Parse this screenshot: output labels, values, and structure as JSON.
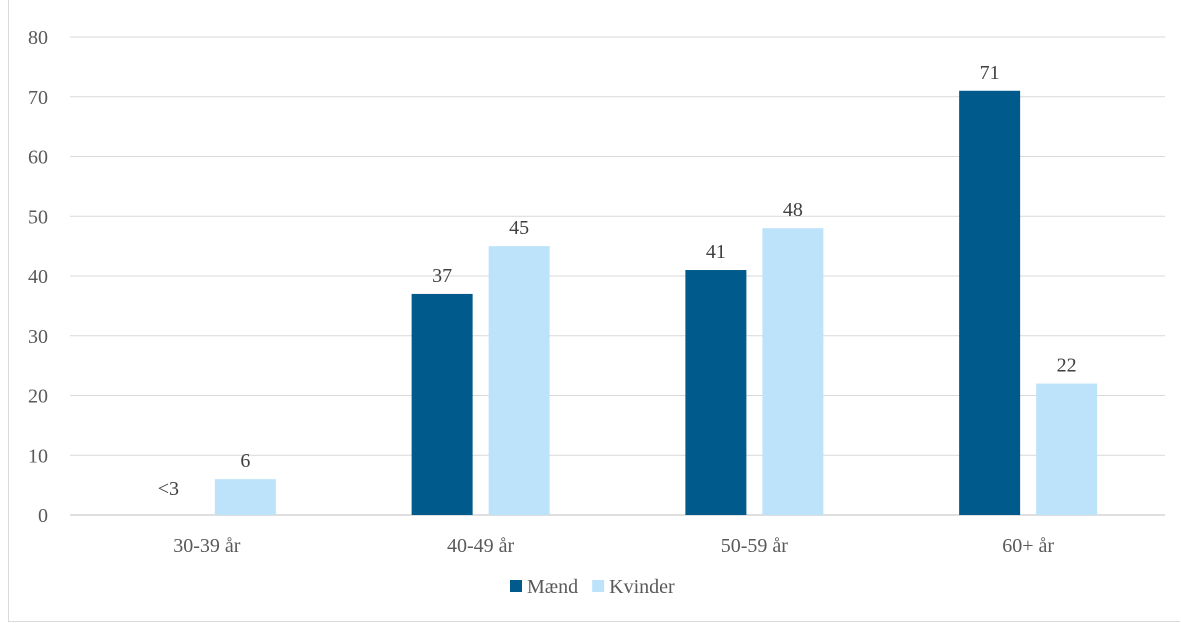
{
  "chart_data": {
    "type": "bar",
    "categories": [
      "30-39 år",
      "40-49 år",
      "50-59 år",
      "60+ år"
    ],
    "series": [
      {
        "name": "Mænd",
        "values": [
          null,
          37,
          41,
          71
        ],
        "labels": [
          "<3",
          "37",
          "41",
          "71"
        ],
        "color": "#005a8c"
      },
      {
        "name": "Kvinder",
        "values": [
          6,
          45,
          48,
          22
        ],
        "labels": [
          "6",
          "45",
          "48",
          "22"
        ],
        "color": "#bde3fb"
      }
    ],
    "y_ticks": [
      "0",
      "10",
      "20",
      "30",
      "40",
      "50",
      "60",
      "70",
      "80"
    ],
    "ylim": [
      0,
      80
    ],
    "grid": true,
    "legend_position": "bottom"
  }
}
